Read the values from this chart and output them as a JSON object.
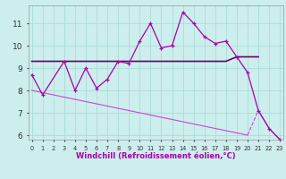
{
  "background_color": "#cceeed",
  "grid_color": "#aaddda",
  "line_color_s1": "#aa00aa",
  "line_color_s2": "#660066",
  "line_color_s3": "#cc44cc",
  "hours": [
    0,
    1,
    2,
    3,
    4,
    5,
    6,
    7,
    8,
    9,
    10,
    11,
    12,
    13,
    14,
    15,
    16,
    17,
    18,
    19,
    20,
    21,
    22,
    23
  ],
  "series1": [
    8.7,
    7.8,
    null,
    9.3,
    8.0,
    9.0,
    8.1,
    8.5,
    9.3,
    9.2,
    10.2,
    11.0,
    9.9,
    10.0,
    11.5,
    11.0,
    10.4,
    10.1,
    10.2,
    9.5,
    8.8,
    7.1,
    6.3,
    5.8
  ],
  "series2": [
    9.3,
    9.3,
    9.3,
    9.3,
    9.3,
    9.3,
    9.3,
    9.3,
    9.3,
    9.3,
    9.3,
    9.3,
    9.3,
    9.3,
    9.3,
    9.3,
    9.3,
    9.3,
    9.3,
    9.5,
    9.5,
    9.5,
    null,
    null
  ],
  "series3": [
    8.0,
    7.9,
    7.8,
    7.7,
    7.6,
    7.5,
    7.4,
    7.3,
    7.2,
    7.1,
    7.0,
    6.9,
    6.8,
    6.7,
    6.6,
    6.5,
    6.4,
    6.3,
    6.2,
    6.1,
    6.0,
    null,
    null,
    null
  ],
  "series3b": [
    null,
    null,
    null,
    null,
    null,
    null,
    null,
    null,
    null,
    null,
    null,
    null,
    null,
    null,
    null,
    null,
    null,
    null,
    null,
    null,
    null,
    7.1,
    6.3,
    5.8
  ],
  "ylim": [
    5.8,
    11.8
  ],
  "yticks": [
    6,
    7,
    8,
    9,
    10,
    11
  ],
  "xlabel": "Windchill (Refroidissement éolien,°C)"
}
